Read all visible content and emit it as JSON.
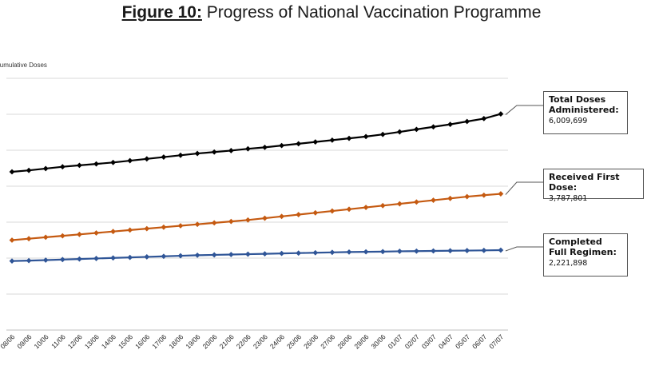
{
  "title": {
    "figure": "Figure 10:",
    "text": " Progress of National Vaccination Programme"
  },
  "chart_data": {
    "type": "line",
    "title": "Figure 10: Progress of National Vaccination Programme",
    "ylabel": "Cumulative Doses",
    "xlabel": "",
    "ylim": [
      0,
      7000000
    ],
    "categories": [
      "08/06",
      "09/06",
      "10/06",
      "11/06",
      "12/06",
      "13/06",
      "14/06",
      "15/06",
      "16/06",
      "17/06",
      "18/06",
      "19/06",
      "20/06",
      "21/06",
      "22/06",
      "23/06",
      "24/06",
      "25/06",
      "26/06",
      "27/06",
      "28/06",
      "29/06",
      "30/06",
      "01/07",
      "02/07",
      "03/07",
      "04/07",
      "05/07",
      "06/07",
      "07/07"
    ],
    "series": [
      {
        "name": "Total Doses Administered",
        "color": "#000000",
        "values": [
          4400000,
          4440000,
          4490000,
          4540000,
          4580000,
          4620000,
          4660000,
          4710000,
          4760000,
          4810000,
          4860000,
          4910000,
          4950000,
          4990000,
          5040000,
          5080000,
          5130000,
          5180000,
          5230000,
          5280000,
          5330000,
          5380000,
          5440000,
          5510000,
          5580000,
          5650000,
          5720000,
          5800000,
          5880000,
          6009699
        ]
      },
      {
        "name": "Received First Dose",
        "color": "#C55A11",
        "values": [
          2500000,
          2540000,
          2580000,
          2620000,
          2660000,
          2700000,
          2740000,
          2780000,
          2820000,
          2860000,
          2900000,
          2940000,
          2980000,
          3020000,
          3060000,
          3110000,
          3160000,
          3210000,
          3260000,
          3310000,
          3360000,
          3410000,
          3460000,
          3510000,
          3560000,
          3610000,
          3660000,
          3710000,
          3750000,
          3787801
        ]
      },
      {
        "name": "Completed Full Regimen",
        "color": "#2F5597",
        "values": [
          1920000,
          1930000,
          1945000,
          1960000,
          1975000,
          1990000,
          2005000,
          2020000,
          2035000,
          2050000,
          2065000,
          2080000,
          2090000,
          2100000,
          2110000,
          2120000,
          2130000,
          2140000,
          2150000,
          2160000,
          2170000,
          2175000,
          2180000,
          2190000,
          2195000,
          2200000,
          2205000,
          2210000,
          2215000,
          2221898
        ]
      }
    ]
  },
  "callouts": {
    "total": {
      "label": "Total Doses Administered:",
      "value": "6,009,699"
    },
    "first": {
      "label": "Received First Dose:",
      "value": "3,787,801"
    },
    "full": {
      "label": "Completed Full Regimen:",
      "value": "2,221,898"
    }
  }
}
